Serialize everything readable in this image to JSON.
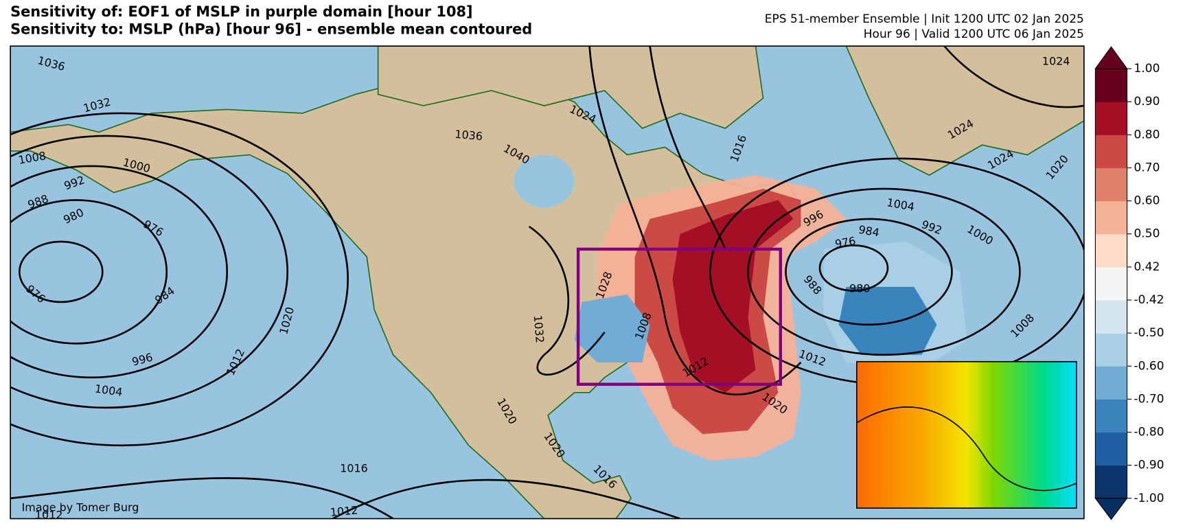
{
  "header": {
    "title_lines": [
      "Sensitivity of: EOF1 of MSLP in purple domain [hour 108]",
      "Sensitivity to: MSLP (hPa) [hour 96] - ensemble mean contoured"
    ],
    "info_lines": [
      "EPS 51-member Ensemble | Init 1200 UTC 02 Jan 2025",
      "Hour 96 | Valid 1200 UTC 06 Jan 2025"
    ]
  },
  "contour_labels": [
    1036,
    1032,
    1008,
    1000,
    992,
    988,
    980,
    976,
    976,
    984,
    996,
    1004,
    1012,
    1020,
    1016,
    1012,
    1012,
    1020,
    1020,
    1016,
    1036,
    1040,
    1024,
    1016,
    1028,
    1032,
    1008,
    1012,
    1020,
    1012,
    996,
    1004,
    984,
    992,
    1000,
    976,
    980,
    988,
    1008,
    1024,
    1020,
    1024,
    1024
  ],
  "credit": "Image by Tomer Burg",
  "colorbar": {
    "ticks": [
      {
        "value": -1,
        "label": "-1.00"
      },
      {
        "value": -0.9,
        "label": "-0.90"
      },
      {
        "value": -0.8,
        "label": "-0.80"
      },
      {
        "value": -0.7,
        "label": "-0.70"
      },
      {
        "value": -0.6,
        "label": "-0.60"
      },
      {
        "value": -0.5,
        "label": "-0.50"
      },
      {
        "value": -0.42,
        "label": "-0.42"
      },
      {
        "value": 0.42,
        "label": "0.42"
      },
      {
        "value": 0.5,
        "label": "0.50"
      },
      {
        "value": 0.6,
        "label": "0.60"
      },
      {
        "value": 0.7,
        "label": "0.70"
      },
      {
        "value": 0.8,
        "label": "0.80"
      },
      {
        "value": 0.9,
        "label": "0.90"
      },
      {
        "value": 1,
        "label": "1.00"
      }
    ],
    "colors": [
      "#0b356b",
      "#1d5fa2",
      "#3a84bd",
      "#70acd4",
      "#a9cfe5",
      "#d5e5ef",
      "#f4f4f2",
      "#fddbc7",
      "#f4b196",
      "#e0826a",
      "#cb4a46",
      "#a50f26",
      "#67001f"
    ],
    "extend_colors": [
      "#053061",
      "#67001f"
    ]
  }
}
